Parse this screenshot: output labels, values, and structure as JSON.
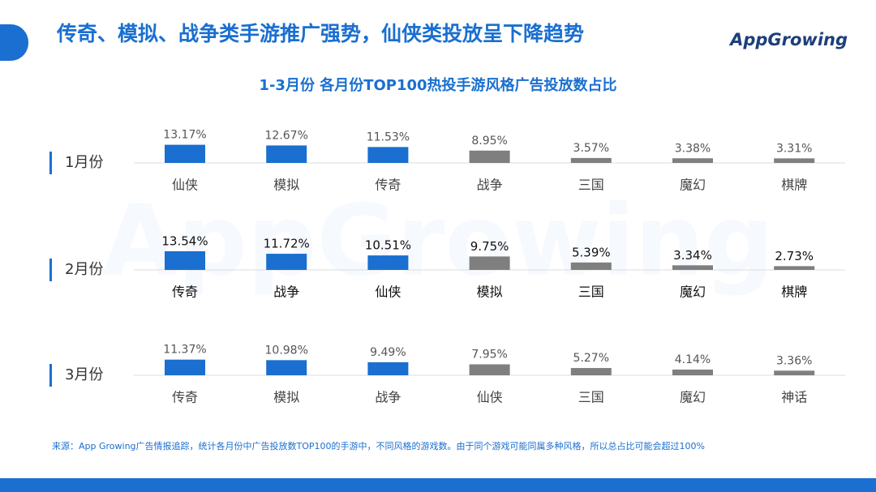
{
  "header": {
    "title": "传奇、模拟、战争类手游推广强势，仙侠类投放呈下降趋势",
    "logo": "AppGrowing"
  },
  "chart_title": "1-3月份 各月份TOP100热投手游风格广告投放数占比",
  "watermark": "AppGrowing",
  "chart_data": [
    {
      "type": "bar",
      "label": "1月份",
      "categories": [
        "仙侠",
        "模拟",
        "传奇",
        "战争",
        "三国",
        "魔幻",
        "棋牌"
      ],
      "values": [
        13.17,
        12.67,
        11.53,
        8.95,
        3.57,
        3.38,
        3.31
      ],
      "value_labels": [
        "13.17%",
        "12.67%",
        "11.53%",
        "8.95%",
        "3.57%",
        "3.38%",
        "3.31%"
      ],
      "colors": [
        "#1a6fd0",
        "#1a6fd0",
        "#1a6fd0",
        "#7f7f7f",
        "#7f7f7f",
        "#7f7f7f",
        "#7f7f7f"
      ]
    },
    {
      "type": "bar",
      "label": "2月份",
      "categories": [
        "传奇",
        "战争",
        "仙侠",
        "模拟",
        "三国",
        "魔幻",
        "棋牌"
      ],
      "values": [
        13.54,
        11.72,
        10.51,
        9.75,
        5.39,
        3.34,
        2.73
      ],
      "value_labels": [
        "13.54%",
        "11.72%",
        "10.51%",
        "9.75%",
        "5.39%",
        "3.34%",
        "2.73%"
      ],
      "colors": [
        "#1a6fd0",
        "#1a6fd0",
        "#1a6fd0",
        "#7f7f7f",
        "#7f7f7f",
        "#7f7f7f",
        "#7f7f7f"
      ]
    },
    {
      "type": "bar",
      "label": "3月份",
      "categories": [
        "传奇",
        "模拟",
        "战争",
        "仙侠",
        "三国",
        "魔幻",
        "神话"
      ],
      "values": [
        11.37,
        10.98,
        9.49,
        7.95,
        5.27,
        4.14,
        3.36
      ],
      "value_labels": [
        "11.37%",
        "10.98%",
        "9.49%",
        "7.95%",
        "5.27%",
        "4.14%",
        "3.36%"
      ],
      "colors": [
        "#1a6fd0",
        "#1a6fd0",
        "#1a6fd0",
        "#7f7f7f",
        "#7f7f7f",
        "#7f7f7f",
        "#7f7f7f"
      ]
    }
  ],
  "source": "来源：App Growing广告情报追踪，统计各月份中广告投放数TOP100的手游中，不同风格的游戏数。由于同个游戏可能同属多种风格，所以总占比可能会超过100%"
}
